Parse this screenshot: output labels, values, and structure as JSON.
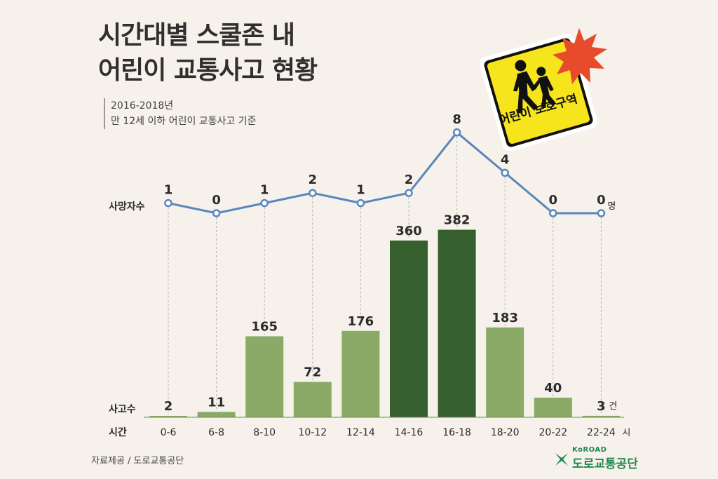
{
  "title_line1": "시간대별 스쿨존 내",
  "title_line2": "어린이 교통사고 현황",
  "subtitle_line1": "2016-2018년",
  "subtitle_line2": "만 12세 이하 어린이 교통사고 기준",
  "sign_text": "어린이 보호구역",
  "source": "자료제공 / 도로교통공단",
  "logo_small": "KoROAD",
  "logo_name": "도로교통공단",
  "colors": {
    "bar_light": "#8aab68",
    "bar_dark": "#365f2e",
    "line": "#5a86be",
    "sign_yellow": "#f6e41c",
    "burst": "#e84b2b"
  },
  "chart_data": {
    "type": "bar+line",
    "categories": [
      "0-6",
      "6-8",
      "8-10",
      "10-12",
      "12-14",
      "14-16",
      "16-18",
      "18-20",
      "20-22",
      "22-24"
    ],
    "x_unit": "시",
    "bar_series_label": "사고수",
    "bar_unit": "건",
    "bar_values": [
      2,
      11,
      165,
      72,
      176,
      360,
      382,
      183,
      40,
      3
    ],
    "bar_highlight": [
      false,
      false,
      false,
      false,
      false,
      true,
      true,
      false,
      false,
      false
    ],
    "line_series_label": "사망자수",
    "line_unit": "명",
    "line_values": [
      1,
      0,
      1,
      2,
      1,
      2,
      8,
      4,
      0,
      0
    ],
    "x_axis_label": "시간"
  }
}
